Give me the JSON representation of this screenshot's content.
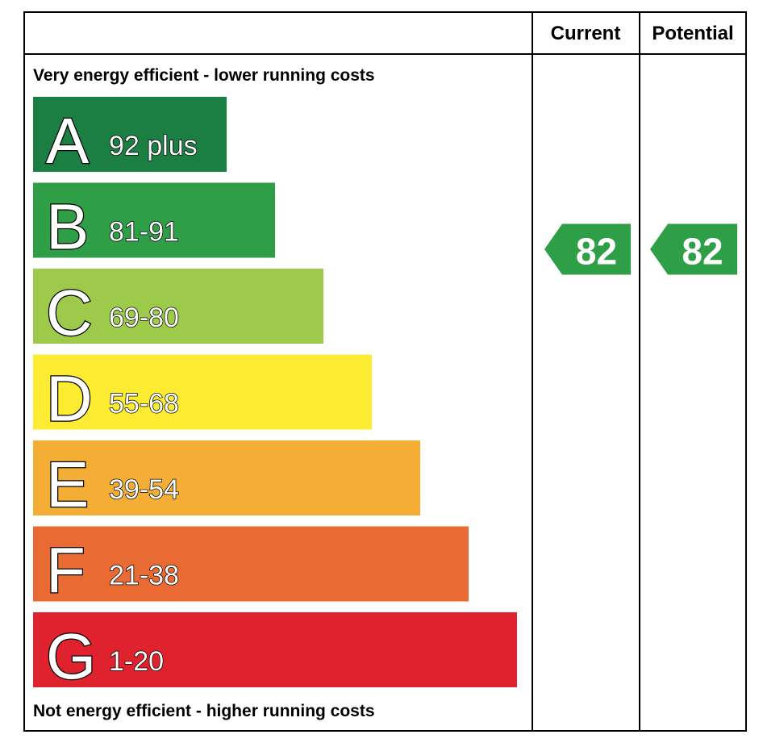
{
  "header": {
    "current": "Current",
    "potential": "Potential"
  },
  "top_note": "Very energy efficient - lower running costs",
  "bottom_note": "Not energy efficient - higher running costs",
  "bands": [
    {
      "letter": "A",
      "range": "92 plus",
      "color": "#1b7e43"
    },
    {
      "letter": "B",
      "range": "81-91",
      "color": "#2f9f47"
    },
    {
      "letter": "C",
      "range": "69-80",
      "color": "#9dca4b"
    },
    {
      "letter": "D",
      "range": "55-68",
      "color": "#fdec31"
    },
    {
      "letter": "E",
      "range": "39-54",
      "color": "#f4ae35"
    },
    {
      "letter": "F",
      "range": "21-38",
      "color": "#e96a32"
    },
    {
      "letter": "G",
      "range": "1-20",
      "color": "#e0212e"
    }
  ],
  "current": 82,
  "potential": 82
}
